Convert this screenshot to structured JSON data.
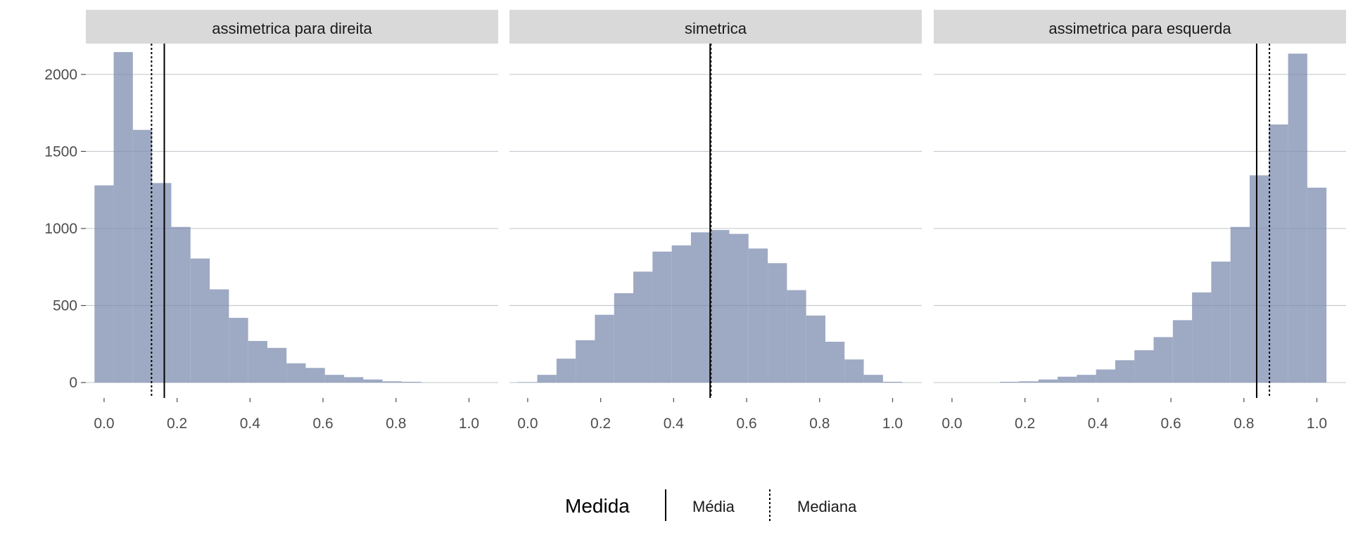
{
  "colors": {
    "bar_fill": "#7d8caf",
    "strip_bg": "#d9d9d9",
    "grid": "#c7cbd1",
    "line": "#000000"
  },
  "chart_data": [
    {
      "type": "histogram",
      "title": "assimetrica para direita",
      "bin_width": 0.0526,
      "bin_centers": [
        0.0,
        0.0526,
        0.1053,
        0.1579,
        0.2105,
        0.2632,
        0.3158,
        0.3684,
        0.4211,
        0.4737,
        0.5263,
        0.5789,
        0.6316,
        0.6842,
        0.7368,
        0.7895,
        0.8421
      ],
      "counts": [
        1280,
        2145,
        1640,
        1295,
        1010,
        805,
        605,
        420,
        270,
        225,
        125,
        95,
        50,
        35,
        20,
        8,
        5
      ],
      "mean": 0.165,
      "median": 0.13,
      "xlim": [
        -0.05,
        1.08
      ],
      "ylim": [
        -100,
        2200
      ],
      "x_ticks": [
        "0.0",
        "0.2",
        "0.4",
        "0.6",
        "0.8",
        "1.0"
      ],
      "y_ticks": [
        "0",
        "500",
        "1000",
        "1500",
        "2000"
      ]
    },
    {
      "type": "histogram",
      "title": "simetrica",
      "bin_width": 0.0526,
      "bin_centers": [
        0.0,
        0.0526,
        0.1053,
        0.1579,
        0.2105,
        0.2632,
        0.3158,
        0.3684,
        0.4211,
        0.4737,
        0.5263,
        0.5789,
        0.6316,
        0.6842,
        0.7368,
        0.7895,
        0.8421,
        0.8947,
        0.9474,
        1.0
      ],
      "counts": [
        3,
        50,
        155,
        275,
        440,
        580,
        720,
        850,
        890,
        975,
        990,
        965,
        870,
        775,
        600,
        435,
        265,
        150,
        50,
        5
      ],
      "mean": 0.5,
      "median": 0.502,
      "xlim": [
        -0.05,
        1.08
      ],
      "ylim": [
        -100,
        2200
      ],
      "x_ticks": [
        "0.0",
        "0.2",
        "0.4",
        "0.6",
        "0.8",
        "1.0"
      ]
    },
    {
      "type": "histogram",
      "title": "assimetrica para esquerda",
      "bin_width": 0.0526,
      "bin_centers": [
        0.1579,
        0.2105,
        0.2632,
        0.3158,
        0.3684,
        0.4211,
        0.4737,
        0.5263,
        0.5789,
        0.6316,
        0.6842,
        0.7368,
        0.7895,
        0.8421,
        0.8947,
        0.9474,
        1.0
      ],
      "counts": [
        5,
        8,
        20,
        38,
        50,
        85,
        145,
        210,
        295,
        405,
        585,
        785,
        1010,
        1345,
        1675,
        2135,
        1265
      ],
      "mean": 0.835,
      "median": 0.87,
      "xlim": [
        -0.05,
        1.08
      ],
      "ylim": [
        -100,
        2200
      ],
      "x_ticks": [
        "0.0",
        "0.2",
        "0.4",
        "0.6",
        "0.8",
        "1.0"
      ]
    }
  ],
  "legend": {
    "title": "Medida",
    "items": [
      {
        "label": "Média",
        "linetype": "solid"
      },
      {
        "label": "Mediana",
        "linetype": "dotted"
      }
    ]
  }
}
